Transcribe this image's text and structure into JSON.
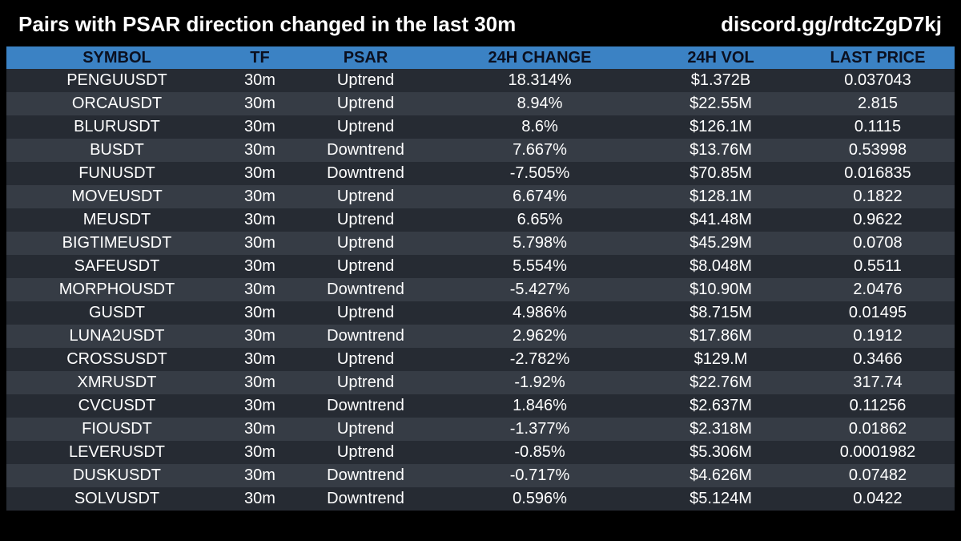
{
  "header": {
    "title": "Pairs with PSAR direction changed in the last 30m",
    "link": "discord.gg/rdtcZgD7kj"
  },
  "colors": {
    "background": "#000000",
    "header_row": "#3b82c4",
    "row_dark": "#262b33",
    "row_light": "#363c45"
  },
  "table": {
    "columns": [
      "SYMBOL",
      "TF",
      "PSAR",
      "24H CHANGE",
      "24H VOL",
      "LAST PRICE"
    ],
    "rows": [
      [
        "PENGUUSDT",
        "30m",
        "Uptrend",
        "18.314%",
        "$1.372B",
        "0.037043"
      ],
      [
        "ORCAUSDT",
        "30m",
        "Uptrend",
        "8.94%",
        "$22.55M",
        "2.815"
      ],
      [
        "BLURUSDT",
        "30m",
        "Uptrend",
        "8.6%",
        "$126.1M",
        "0.1115"
      ],
      [
        "BUSDT",
        "30m",
        "Downtrend",
        "7.667%",
        "$13.76M",
        "0.53998"
      ],
      [
        "FUNUSDT",
        "30m",
        "Downtrend",
        "-7.505%",
        "$70.85M",
        "0.016835"
      ],
      [
        "MOVEUSDT",
        "30m",
        "Uptrend",
        "6.674%",
        "$128.1M",
        "0.1822"
      ],
      [
        "MEUSDT",
        "30m",
        "Uptrend",
        "6.65%",
        "$41.48M",
        "0.9622"
      ],
      [
        "BIGTIMEUSDT",
        "30m",
        "Uptrend",
        "5.798%",
        "$45.29M",
        "0.0708"
      ],
      [
        "SAFEUSDT",
        "30m",
        "Uptrend",
        "5.554%",
        "$8.048M",
        "0.5511"
      ],
      [
        "MORPHOUSDT",
        "30m",
        "Downtrend",
        "-5.427%",
        "$10.90M",
        "2.0476"
      ],
      [
        "GUSDT",
        "30m",
        "Uptrend",
        "4.986%",
        "$8.715M",
        "0.01495"
      ],
      [
        "LUNA2USDT",
        "30m",
        "Downtrend",
        "2.962%",
        "$17.86M",
        "0.1912"
      ],
      [
        "CROSSUSDT",
        "30m",
        "Uptrend",
        "-2.782%",
        "$129.M",
        "0.3466"
      ],
      [
        "XMRUSDT",
        "30m",
        "Uptrend",
        "-1.92%",
        "$22.76M",
        "317.74"
      ],
      [
        "CVCUSDT",
        "30m",
        "Downtrend",
        "1.846%",
        "$2.637M",
        "0.11256"
      ],
      [
        "FIOUSDT",
        "30m",
        "Uptrend",
        "-1.377%",
        "$2.318M",
        "0.01862"
      ],
      [
        "LEVERUSDT",
        "30m",
        "Uptrend",
        "-0.85%",
        "$5.306M",
        "0.0001982"
      ],
      [
        "DUSKUSDT",
        "30m",
        "Downtrend",
        "-0.717%",
        "$4.626M",
        "0.07482"
      ],
      [
        "SOLVUSDT",
        "30m",
        "Downtrend",
        "0.596%",
        "$5.124M",
        "0.0422"
      ]
    ]
  }
}
